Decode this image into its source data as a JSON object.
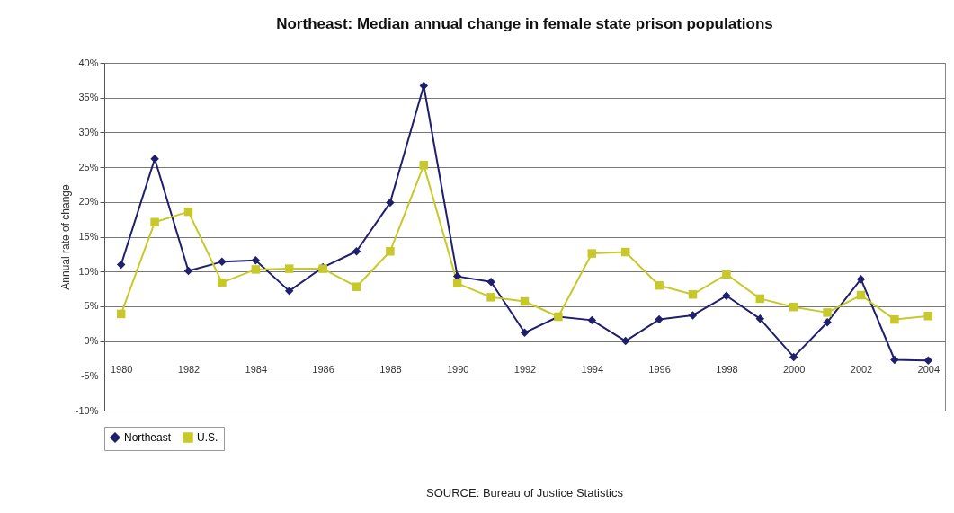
{
  "chart_data": {
    "type": "line",
    "title": "Northeast: Median annual change in female state prison populations",
    "ylabel": "Annual rate of change",
    "categories": [
      "1980",
      null,
      "1982",
      null,
      "1984",
      null,
      "1986",
      null,
      "1988",
      null,
      "1990",
      null,
      "1992",
      null,
      "1994",
      null,
      "1996",
      null,
      "1998",
      null,
      "2000",
      null,
      "2002",
      null,
      "2004"
    ],
    "series": [
      {
        "name": "Northeast",
        "color": "#1f1f6e",
        "marker": "diamond",
        "values": [
          11.0,
          26.2,
          10.1,
          11.4,
          11.6,
          7.2,
          10.6,
          12.9,
          19.9,
          36.7,
          9.3,
          8.5,
          1.2,
          3.5,
          3.0,
          0.0,
          3.1,
          3.7,
          6.5,
          3.2,
          -2.3,
          2.7,
          8.9,
          -2.7,
          -2.8
        ]
      },
      {
        "name": "U.S.",
        "color": "#c8c82a",
        "marker": "square",
        "values": [
          3.9,
          17.1,
          18.6,
          8.4,
          10.3,
          10.4,
          10.4,
          7.8,
          12.9,
          25.3,
          8.3,
          6.3,
          5.7,
          3.5,
          12.6,
          12.8,
          8.0,
          6.7,
          9.6,
          6.1,
          4.9,
          4.1,
          6.6,
          3.1,
          3.6
        ]
      }
    ],
    "ylim": [
      -10,
      40
    ],
    "yticks": [
      {
        "value": -10,
        "label": "-10%"
      },
      {
        "value": -5,
        "label": "-5%"
      },
      {
        "value": 0,
        "label": "0%"
      },
      {
        "value": 5,
        "label": "5%"
      },
      {
        "value": 10,
        "label": "10%"
      },
      {
        "value": 15,
        "label": "15%"
      },
      {
        "value": 20,
        "label": "20%"
      },
      {
        "value": 25,
        "label": "25%"
      },
      {
        "value": 30,
        "label": "30%"
      },
      {
        "value": 35,
        "label": "35%"
      },
      {
        "value": 40,
        "label": "40%"
      }
    ],
    "grid": "y",
    "legend": "bottom",
    "line_style": "solid",
    "annotations": [
      "SOURCE: Bureau of Justice Statistics"
    ]
  }
}
